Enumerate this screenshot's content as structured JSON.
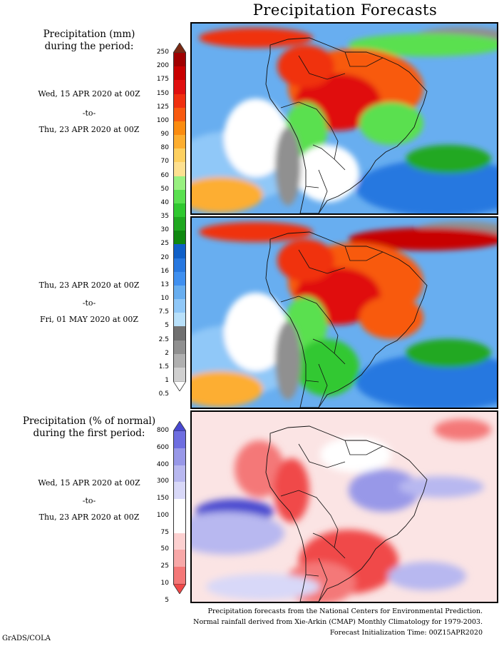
{
  "title": "Precipitation Forecasts",
  "panel1_label": {
    "heading1": "Precipitation (mm)",
    "heading2": "during the period:",
    "start": "Wed, 15 APR 2020 at 00Z",
    "sep": "-to-",
    "end": "Thu, 23 APR 2020 at 00Z"
  },
  "panel2_label": {
    "start": "Thu, 23 APR 2020 at 00Z",
    "sep": "-to-",
    "end": "Fri, 01 MAY 2020 at 00Z"
  },
  "panel3_label": {
    "heading1": "Precipitation (% of normal)",
    "heading2": "during the first period:",
    "start": "Wed, 15 APR 2020 at 00Z",
    "sep": "-to-",
    "end": "Thu, 23 APR 2020 at 00Z"
  },
  "precip_colorbar": {
    "levels": [
      "250",
      "200",
      "175",
      "150",
      "125",
      "100",
      "90",
      "80",
      "70",
      "60",
      "50",
      "40",
      "35",
      "30",
      "25",
      "20",
      "16",
      "13",
      "10",
      "7.5",
      "5",
      "2.5",
      "2",
      "1.5",
      "1",
      "0.5"
    ],
    "colors": [
      "#7a2a14",
      "#a00000",
      "#c80000",
      "#e01010",
      "#f03010",
      "#f85a10",
      "#fb8c10",
      "#fdae30",
      "#fdd060",
      "#fde090",
      "#98f080",
      "#5ae050",
      "#30c830",
      "#20a820",
      "#108810",
      "#1060c8",
      "#2878e0",
      "#4090f0",
      "#68aef0",
      "#90c8f8",
      "#b8e0fa",
      "#707070",
      "#909090",
      "#b0b0b0",
      "#d0d0d0",
      "#ffffff"
    ]
  },
  "pct_colorbar": {
    "levels": [
      "800",
      "600",
      "400",
      "300",
      "150",
      "100",
      "75",
      "50",
      "25",
      "10",
      "5"
    ],
    "colors": [
      "#4848d0",
      "#6e6ee0",
      "#9898e8",
      "#b8b8f0",
      "#d8d8f8",
      "#ffffff",
      "#ffffff",
      "#fcd0d0",
      "#f8a8a8",
      "#f47878",
      "#f04848"
    ]
  },
  "footer": {
    "line1": "Precipitation forecasts from the National Centers for Environmental Prediction.",
    "line2": "Normal rainfall derived from Xie-Arkin (CMAP) Monthly Climatology for 1979-2003.",
    "line3": "Forecast Initialization Time: 00Z15APR2020"
  },
  "credit": "GrADS/COLA"
}
